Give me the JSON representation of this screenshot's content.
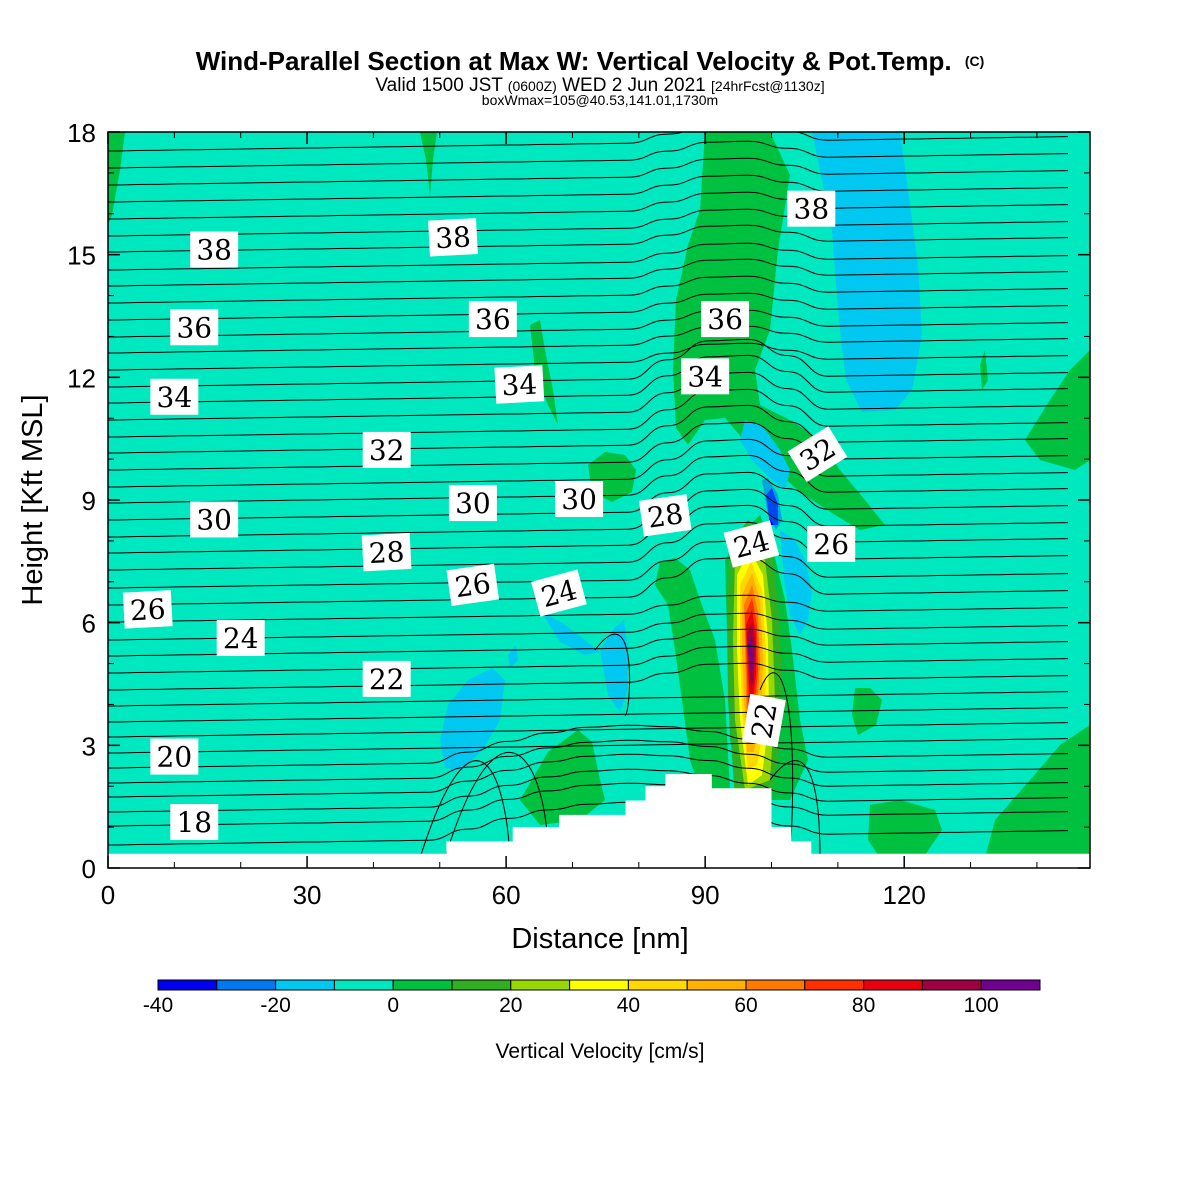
{
  "header": {
    "title": "Wind-Parallel Section at Max W: Vertical Velocity & Pot.Temp.",
    "copyright": "(C)",
    "valid_prefix": "Valid 1500 JST",
    "valid_zulu": "(0600Z)",
    "valid_day": "WED 2 Jun 2021",
    "forecast": "[24hrFcst@1130z]",
    "box_info": "boxWmax=105@40.53,141.01,1730m"
  },
  "colors": {
    "background_field": "#00e8c0",
    "terrain": "#ffffff",
    "contour_line": "#000000"
  },
  "chart_data": {
    "type": "heatmap",
    "xlabel": "Distance [nm]",
    "ylabel": "Height [Kft MSL]",
    "xlim": [
      0,
      148
    ],
    "ylim": [
      0,
      18
    ],
    "xticks": [
      "0",
      "30",
      "60",
      "90",
      "120"
    ],
    "yticks": [
      "0",
      "3",
      "6",
      "9",
      "12",
      "15",
      "18"
    ],
    "colorbar": {
      "title": "Vertical Velocity [cm/s]",
      "levels": [
        -40,
        -30,
        -20,
        -10,
        0,
        10,
        20,
        30,
        40,
        50,
        60,
        70,
        80,
        90,
        100,
        110
      ],
      "colors": [
        "#0000f0",
        "#0078f0",
        "#00c8f0",
        "#00e8c0",
        "#00c040",
        "#30b020",
        "#98d800",
        "#ffff00",
        "#ffd800",
        "#ffb000",
        "#ff7800",
        "#ff3000",
        "#e80010",
        "#a00040",
        "#700090"
      ],
      "tick_labels": [
        "-40",
        "-20",
        "0",
        "20",
        "40",
        "60",
        "80",
        "100"
      ]
    },
    "terrain_top_kft": [
      {
        "x": 0,
        "h": 0.35
      },
      {
        "x": 51,
        "h": 0.35
      },
      {
        "x": 51,
        "h": 0.65
      },
      {
        "x": 61,
        "h": 0.65
      },
      {
        "x": 61,
        "h": 1.0
      },
      {
        "x": 68,
        "h": 1.0
      },
      {
        "x": 68,
        "h": 1.3
      },
      {
        "x": 78,
        "h": 1.3
      },
      {
        "x": 78,
        "h": 1.65
      },
      {
        "x": 81,
        "h": 1.65
      },
      {
        "x": 81,
        "h": 2.0
      },
      {
        "x": 84,
        "h": 2.0
      },
      {
        "x": 84,
        "h": 2.3
      },
      {
        "x": 91,
        "h": 2.3
      },
      {
        "x": 91,
        "h": 1.95
      },
      {
        "x": 100,
        "h": 1.95
      },
      {
        "x": 100,
        "h": 1.0
      },
      {
        "x": 103,
        "h": 1.0
      },
      {
        "x": 103,
        "h": 0.65
      },
      {
        "x": 106,
        "h": 0.65
      },
      {
        "x": 106,
        "h": 0.35
      },
      {
        "x": 148,
        "h": 0.35
      }
    ],
    "theta_contour_labels": [
      {
        "text": "38",
        "x": 16,
        "y": 15.1,
        "rot": 0
      },
      {
        "text": "38",
        "x": 52,
        "y": 15.4,
        "rot": -3
      },
      {
        "text": "38",
        "x": 106,
        "y": 16.1,
        "rot": 0
      },
      {
        "text": "36",
        "x": 13,
        "y": 13.2,
        "rot": 0
      },
      {
        "text": "36",
        "x": 58,
        "y": 13.4,
        "rot": 0
      },
      {
        "text": "36",
        "x": 93,
        "y": 13.4,
        "rot": 0
      },
      {
        "text": "34",
        "x": 10,
        "y": 11.5,
        "rot": 0
      },
      {
        "text": "34",
        "x": 62,
        "y": 11.8,
        "rot": -3
      },
      {
        "text": "34",
        "x": 90,
        "y": 12.0,
        "rot": 0
      },
      {
        "text": "32",
        "x": 42,
        "y": 10.2,
        "rot": 0
      },
      {
        "text": "32",
        "x": 107,
        "y": 10.1,
        "rot": -32
      },
      {
        "text": "30",
        "x": 16,
        "y": 8.5,
        "rot": 0
      },
      {
        "text": "30",
        "x": 55,
        "y": 8.9,
        "rot": 0
      },
      {
        "text": "30",
        "x": 71,
        "y": 9.0,
        "rot": 0
      },
      {
        "text": "28",
        "x": 42,
        "y": 7.7,
        "rot": -3
      },
      {
        "text": "28",
        "x": 84,
        "y": 8.6,
        "rot": -8
      },
      {
        "text": "26",
        "x": 6,
        "y": 6.3,
        "rot": -3
      },
      {
        "text": "26",
        "x": 55,
        "y": 6.9,
        "rot": -8
      },
      {
        "text": "26",
        "x": 109,
        "y": 7.9,
        "rot": 0
      },
      {
        "text": "24",
        "x": 20,
        "y": 5.6,
        "rot": 0
      },
      {
        "text": "24",
        "x": 68,
        "y": 6.7,
        "rot": -15
      },
      {
        "text": "24",
        "x": 97,
        "y": 7.9,
        "rot": -15
      },
      {
        "text": "22",
        "x": 42,
        "y": 4.6,
        "rot": 0
      },
      {
        "text": "22",
        "x": 99,
        "y": 3.6,
        "rot": -80
      },
      {
        "text": "20",
        "x": 10,
        "y": 2.7,
        "rot": 0
      },
      {
        "text": "18",
        "x": 13,
        "y": 1.1,
        "rot": 0
      }
    ]
  }
}
